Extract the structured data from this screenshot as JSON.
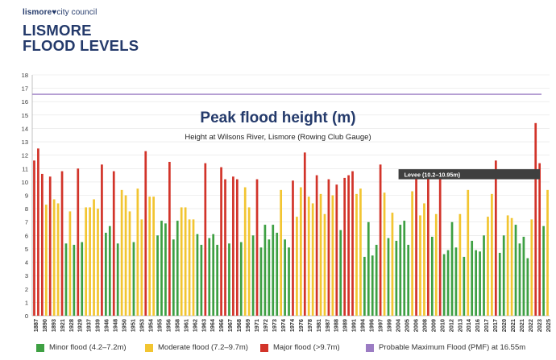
{
  "header": {
    "council": "lismore",
    "council_suffix": "city council",
    "title_line1": "LISMORE",
    "title_line2": "FLOOD LEVELS"
  },
  "colors": {
    "minor": "#3ea043",
    "moderate": "#f2c531",
    "major": "#d2342a",
    "pmf": "#9b7cc3",
    "levee": "#3f3f3f",
    "title": "#243a6b"
  },
  "chart_data": {
    "type": "bar",
    "title": "Peak flood height (m)",
    "subtitle": "Height at Wilsons River, Lismore (Rowing Club Gauge)",
    "ylim": [
      0,
      18
    ],
    "yticks": [
      0,
      1,
      2,
      3,
      4,
      5,
      6,
      7,
      8,
      9,
      10,
      11,
      12,
      13,
      14,
      15,
      16,
      17,
      18
    ],
    "x_tick_labels": [
      "1887",
      "1890",
      "1893",
      "1921",
      "1928",
      "1929",
      "1937",
      "1939",
      "1946",
      "1948",
      "1950",
      "1951",
      "1953",
      "1954",
      "1955",
      "1956",
      "1958",
      "1961",
      "1962",
      "1963",
      "1964",
      "1966",
      "1967",
      "1968",
      "1969",
      "1971",
      "1972",
      "1973",
      "1974",
      "1974",
      "1976",
      "1978",
      "1981",
      "1987",
      "1988",
      "1989",
      "1991",
      "1994",
      "1996",
      "1997",
      "1999",
      "2004",
      "2005",
      "2006",
      "2008",
      "2009",
      "2010",
      "2012",
      "2013",
      "2014",
      "2016",
      "2017",
      "2017",
      "2020",
      "2021",
      "2021",
      "2022",
      "2023",
      "2025"
    ],
    "values": [
      11.6,
      12.5,
      10.6,
      8.3,
      10.4,
      8.7,
      8.4,
      10.8,
      5.4,
      7.8,
      5.3,
      11.0,
      5.5,
      8.1,
      8.1,
      8.7,
      8.0,
      11.3,
      6.2,
      6.7,
      10.8,
      5.4,
      9.4,
      9.0,
      7.8,
      5.5,
      9.5,
      7.2,
      12.3,
      8.9,
      8.9,
      6.0,
      7.1,
      6.9,
      11.5,
      5.7,
      7.1,
      8.1,
      8.1,
      7.2,
      7.2,
      6.1,
      5.3,
      11.4,
      5.8,
      6.1,
      5.3,
      11.1,
      10.2,
      5.4,
      10.4,
      10.2,
      5.5,
      9.6,
      8.1,
      6.0,
      10.2,
      5.1,
      6.8,
      5.7,
      6.8,
      6.2,
      9.4,
      5.7,
      5.1,
      10.1,
      7.4,
      9.6,
      12.2,
      8.9,
      8.4,
      10.5,
      9.1,
      7.6,
      10.2,
      9.0,
      9.8,
      6.4,
      10.3,
      10.5,
      10.8,
      9.1,
      9.5,
      4.4,
      7.0,
      4.5,
      5.3,
      11.3,
      9.2,
      5.8,
      7.7,
      5.6,
      6.8,
      7.1,
      5.3,
      9.3,
      10.5,
      7.5,
      8.4,
      10.4,
      5.9,
      7.6,
      10.2,
      4.6,
      4.9,
      7.0,
      5.1,
      7.6,
      4.4,
      9.4,
      5.6,
      4.9,
      4.8,
      6.0,
      7.4,
      9.1,
      11.6,
      4.7,
      6.0,
      7.5,
      7.3,
      6.8,
      5.4,
      5.9,
      4.3,
      7.2,
      14.4,
      11.4,
      6.7,
      9.4
    ],
    "thresholds": {
      "minor": [
        4.2,
        7.2
      ],
      "moderate": [
        7.2,
        9.7
      ],
      "major": 9.7
    },
    "pmf": 16.55,
    "levee": {
      "label": "Levee (10.2–10.95m)",
      "min": 10.2,
      "max": 10.95,
      "from_label": "2004"
    },
    "legend": [
      {
        "key": "minor",
        "label": "Minor flood (4.2–7.2m)"
      },
      {
        "key": "moderate",
        "label": "Moderate flood (7.2–9.7m)"
      },
      {
        "key": "major",
        "label": "Major flood (>9.7m)"
      },
      {
        "key": "pmf",
        "label": "Probable Maximum Flood (PMF) at 16.55m"
      }
    ]
  }
}
